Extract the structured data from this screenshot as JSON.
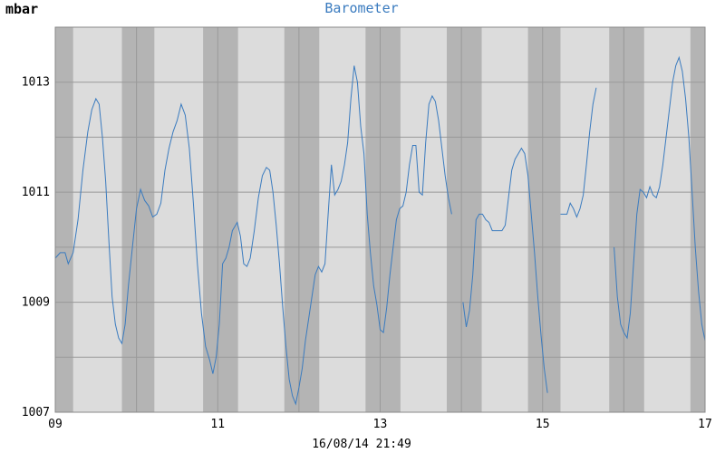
{
  "chart_data": {
    "type": "line",
    "title": "Barometer",
    "ylabel": "mbar",
    "footer": "16/08/14 21:49",
    "ylim": [
      1007,
      1014
    ],
    "xlim": [
      9,
      17
    ],
    "x_ticks": [
      "09",
      "11",
      "13",
      "15",
      "17"
    ],
    "x_tick_values": [
      9,
      11,
      13,
      15,
      17
    ],
    "y_ticks": [
      "1007",
      "1009",
      "1011",
      "1013"
    ],
    "y_tick_values": [
      1007,
      1009,
      1011,
      1013
    ],
    "grid": true,
    "colors": {
      "line": "#3a7bbf",
      "band_light": "#dcdcdc",
      "band_dark": "#b4b4b4",
      "grid": "#999999"
    },
    "night_bands": [
      [
        9.0,
        9.22
      ],
      [
        9.82,
        10.22
      ],
      [
        10.82,
        11.25
      ],
      [
        11.82,
        12.25
      ],
      [
        12.82,
        13.25
      ],
      [
        13.82,
        14.25
      ],
      [
        14.82,
        15.22
      ],
      [
        15.82,
        16.25
      ],
      [
        16.82,
        17.0
      ]
    ],
    "series": [
      {
        "segments": [
          [
            [
              9.0,
              1009.8
            ],
            [
              9.06,
              1009.9
            ],
            [
              9.12,
              1009.9
            ],
            [
              9.16,
              1009.7
            ],
            [
              9.22,
              1009.9
            ],
            [
              9.28,
              1010.5
            ],
            [
              9.34,
              1011.4
            ],
            [
              9.4,
              1012.1
            ],
            [
              9.45,
              1012.5
            ],
            [
              9.5,
              1012.7
            ],
            [
              9.54,
              1012.6
            ],
            [
              9.58,
              1012.0
            ],
            [
              9.62,
              1011.2
            ],
            [
              9.66,
              1010.1
            ],
            [
              9.7,
              1009.1
            ],
            [
              9.74,
              1008.6
            ],
            [
              9.78,
              1008.35
            ],
            [
              9.82,
              1008.25
            ],
            [
              9.86,
              1008.6
            ],
            [
              9.9,
              1009.3
            ],
            [
              9.95,
              1010.0
            ],
            [
              10.0,
              1010.7
            ],
            [
              10.05,
              1011.05
            ],
            [
              10.1,
              1010.85
            ],
            [
              10.15,
              1010.75
            ],
            [
              10.2,
              1010.55
            ],
            [
              10.25,
              1010.6
            ],
            [
              10.3,
              1010.8
            ],
            [
              10.35,
              1011.4
            ],
            [
              10.4,
              1011.8
            ],
            [
              10.45,
              1012.1
            ],
            [
              10.5,
              1012.3
            ],
            [
              10.55,
              1012.6
            ],
            [
              10.6,
              1012.4
            ],
            [
              10.65,
              1011.8
            ],
            [
              10.7,
              1010.8
            ],
            [
              10.75,
              1009.7
            ],
            [
              10.8,
              1008.8
            ],
            [
              10.85,
              1008.2
            ],
            [
              10.9,
              1007.95
            ],
            [
              10.94,
              1007.7
            ],
            [
              10.98,
              1008.0
            ],
            [
              11.02,
              1008.6
            ],
            [
              11.06,
              1009.7
            ],
            [
              11.1,
              1009.8
            ],
            [
              11.14,
              1010.0
            ],
            [
              11.18,
              1010.3
            ],
            [
              11.24,
              1010.45
            ],
            [
              11.28,
              1010.2
            ],
            [
              11.32,
              1009.7
            ],
            [
              11.36,
              1009.65
            ],
            [
              11.4,
              1009.8
            ],
            [
              11.45,
              1010.3
            ],
            [
              11.5,
              1010.9
            ],
            [
              11.55,
              1011.3
            ],
            [
              11.6,
              1011.45
            ],
            [
              11.64,
              1011.4
            ],
            [
              11.68,
              1011.0
            ],
            [
              11.72,
              1010.4
            ],
            [
              11.76,
              1009.7
            ],
            [
              11.8,
              1008.9
            ],
            [
              11.84,
              1008.2
            ],
            [
              11.88,
              1007.6
            ],
            [
              11.92,
              1007.3
            ],
            [
              11.96,
              1007.15
            ],
            [
              12.0,
              1007.45
            ],
            [
              12.04,
              1007.8
            ],
            [
              12.08,
              1008.3
            ],
            [
              12.12,
              1008.7
            ],
            [
              12.16,
              1009.1
            ],
            [
              12.2,
              1009.5
            ],
            [
              12.24,
              1009.65
            ],
            [
              12.28,
              1009.55
            ],
            [
              12.32,
              1009.7
            ],
            [
              12.36,
              1010.6
            ],
            [
              12.4,
              1011.5
            ],
            [
              12.44,
              1010.95
            ],
            [
              12.48,
              1011.05
            ],
            [
              12.52,
              1011.2
            ],
            [
              12.56,
              1011.5
            ],
            [
              12.6,
              1011.9
            ],
            [
              12.64,
              1012.7
            ],
            [
              12.68,
              1013.3
            ],
            [
              12.72,
              1013.0
            ],
            [
              12.76,
              1012.2
            ],
            [
              12.8,
              1011.7
            ],
            [
              12.84,
              1010.6
            ],
            [
              12.88,
              1009.9
            ],
            [
              12.92,
              1009.3
            ],
            [
              12.96,
              1008.95
            ],
            [
              13.0,
              1008.5
            ],
            [
              13.04,
              1008.45
            ],
            [
              13.08,
              1008.9
            ],
            [
              13.12,
              1009.5
            ],
            [
              13.16,
              1010.0
            ],
            [
              13.2,
              1010.5
            ],
            [
              13.24,
              1010.7
            ],
            [
              13.28,
              1010.75
            ],
            [
              13.32,
              1011.0
            ],
            [
              13.36,
              1011.5
            ],
            [
              13.4,
              1011.85
            ],
            [
              13.44,
              1011.85
            ],
            [
              13.48,
              1011.0
            ],
            [
              13.52,
              1010.95
            ],
            [
              13.56,
              1011.9
            ],
            [
              13.6,
              1012.6
            ],
            [
              13.64,
              1012.75
            ],
            [
              13.68,
              1012.65
            ],
            [
              13.72,
              1012.3
            ],
            [
              13.76,
              1011.8
            ],
            [
              13.8,
              1011.3
            ],
            [
              13.84,
              1010.9
            ],
            [
              13.88,
              1010.6
            ]
          ],
          [
            [
              14.02,
              1009.0
            ],
            [
              14.06,
              1008.55
            ],
            [
              14.1,
              1008.85
            ],
            [
              14.14,
              1009.5
            ],
            [
              14.18,
              1010.5
            ],
            [
              14.22,
              1010.6
            ],
            [
              14.26,
              1010.6
            ],
            [
              14.3,
              1010.5
            ],
            [
              14.34,
              1010.45
            ],
            [
              14.38,
              1010.3
            ],
            [
              14.42,
              1010.3
            ],
            [
              14.46,
              1010.3
            ],
            [
              14.5,
              1010.3
            ],
            [
              14.54,
              1010.4
            ],
            [
              14.58,
              1010.9
            ],
            [
              14.62,
              1011.4
            ],
            [
              14.66,
              1011.6
            ],
            [
              14.7,
              1011.7
            ],
            [
              14.74,
              1011.8
            ],
            [
              14.78,
              1011.7
            ],
            [
              14.82,
              1011.3
            ],
            [
              14.86,
              1010.6
            ],
            [
              14.9,
              1009.9
            ],
            [
              14.94,
              1009.1
            ],
            [
              14.98,
              1008.4
            ],
            [
              15.02,
              1007.8
            ],
            [
              15.06,
              1007.35
            ]
          ],
          [
            [
              15.22,
              1010.6
            ],
            [
              15.26,
              1010.6
            ],
            [
              15.3,
              1010.6
            ],
            [
              15.34,
              1010.8
            ],
            [
              15.38,
              1010.7
            ],
            [
              15.42,
              1010.55
            ],
            [
              15.46,
              1010.7
            ],
            [
              15.5,
              1010.95
            ],
            [
              15.54,
              1011.5
            ],
            [
              15.58,
              1012.1
            ],
            [
              15.62,
              1012.6
            ],
            [
              15.66,
              1012.9
            ]
          ],
          [
            [
              15.88,
              1010.0
            ],
            [
              15.92,
              1009.1
            ],
            [
              15.96,
              1008.6
            ],
            [
              16.0,
              1008.45
            ],
            [
              16.04,
              1008.35
            ],
            [
              16.08,
              1008.8
            ],
            [
              16.12,
              1009.7
            ],
            [
              16.16,
              1010.6
            ],
            [
              16.2,
              1011.05
            ],
            [
              16.24,
              1011.0
            ],
            [
              16.28,
              1010.9
            ],
            [
              16.32,
              1011.1
            ],
            [
              16.36,
              1010.95
            ],
            [
              16.4,
              1010.9
            ],
            [
              16.44,
              1011.1
            ],
            [
              16.48,
              1011.5
            ],
            [
              16.52,
              1012.0
            ],
            [
              16.56,
              1012.5
            ],
            [
              16.6,
              1013.0
            ],
            [
              16.64,
              1013.3
            ],
            [
              16.68,
              1013.45
            ],
            [
              16.72,
              1013.2
            ],
            [
              16.76,
              1012.7
            ],
            [
              16.8,
              1012.0
            ],
            [
              16.84,
              1011.0
            ],
            [
              16.88,
              1010.0
            ],
            [
              16.92,
              1009.2
            ],
            [
              16.96,
              1008.6
            ],
            [
              17.0,
              1008.3
            ]
          ]
        ]
      }
    ]
  }
}
